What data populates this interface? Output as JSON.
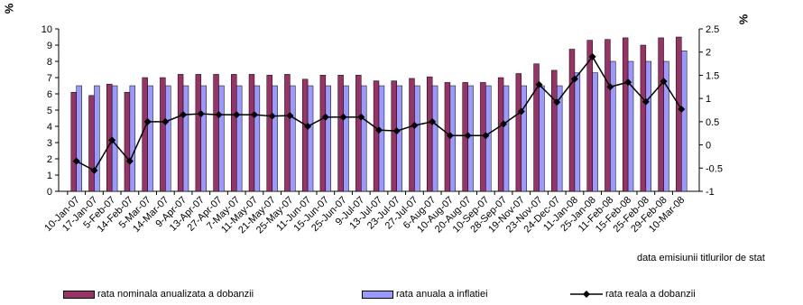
{
  "chart_data": {
    "type": "bar",
    "ylabel_left": "%",
    "ylabel_right": "%",
    "xlabel": "data emisiunii titlurilor de stat",
    "ylim_left": [
      0,
      10
    ],
    "ylim_right": [
      -1,
      2.5
    ],
    "yticks_left": [
      "0",
      "1",
      "2",
      "3",
      "4",
      "5",
      "6",
      "7",
      "8",
      "9",
      "10"
    ],
    "yticks_right": [
      "-1",
      "-0.5",
      "0",
      "0.5",
      "1",
      "1.5",
      "2",
      "2.5"
    ],
    "grid": false,
    "legend_position": "bottom",
    "categories": [
      "10-Jan-07",
      "17-Jan-07",
      "5-Feb-07",
      "14-Feb-07",
      "5-Mar-07",
      "14-Mar-07",
      "9-Apr-07",
      "13-Apr-07",
      "27-Apr-07",
      "7-May-07",
      "11-May-07",
      "21-May-07",
      "25-May-07",
      "11-Jun-07",
      "15-Jun-07",
      "25-Jun-07",
      "9-Jul-07",
      "13-Jul-07",
      "23-Jul-07",
      "27-Jul-07",
      "6-Aug-07",
      "10-Aug-07",
      "20-Aug-07",
      "10-Sep-07",
      "28-Sep-07",
      "19-Nov-07",
      "23-Nov-07",
      "24-Dec-07",
      "11-Jan-08",
      "25-Jan-08",
      "11-Feb-08",
      "15-Feb-08",
      "25-Feb-08",
      "29-Feb-08",
      "10-Mar-08"
    ],
    "series": [
      {
        "name": "rata nominala anualizata a dobanzii",
        "axis": "left",
        "kind": "bar",
        "color": "#993366",
        "values": [
          6.1,
          5.9,
          6.6,
          6.1,
          7.0,
          7.0,
          7.2,
          7.2,
          7.2,
          7.2,
          7.2,
          7.15,
          7.2,
          6.9,
          7.15,
          7.15,
          7.15,
          6.8,
          6.8,
          6.95,
          7.05,
          6.7,
          6.7,
          6.7,
          7.0,
          7.25,
          7.85,
          7.45,
          8.75,
          9.3,
          9.35,
          9.45,
          9.0,
          9.45,
          9.5
        ]
      },
      {
        "name": "rata anuala a inflatiei",
        "axis": "left",
        "kind": "bar",
        "color": "#9999ff",
        "values": [
          6.5,
          6.5,
          6.5,
          6.5,
          6.5,
          6.5,
          6.5,
          6.5,
          6.5,
          6.5,
          6.5,
          6.5,
          6.5,
          6.5,
          6.5,
          6.5,
          6.5,
          6.5,
          6.5,
          6.5,
          6.5,
          6.5,
          6.5,
          6.5,
          6.5,
          6.5,
          6.5,
          6.5,
          7.3,
          7.3,
          8.0,
          8.0,
          8.0,
          8.0,
          8.65
        ]
      },
      {
        "name": "rata reala a dobanzii",
        "axis": "right",
        "kind": "line",
        "color": "#000000",
        "values": [
          -0.35,
          -0.55,
          0.1,
          -0.35,
          0.5,
          0.5,
          0.65,
          0.67,
          0.65,
          0.65,
          0.65,
          0.62,
          0.63,
          0.4,
          0.6,
          0.6,
          0.6,
          0.32,
          0.3,
          0.42,
          0.5,
          0.2,
          0.2,
          0.2,
          0.45,
          0.72,
          1.3,
          0.92,
          1.42,
          1.9,
          1.25,
          1.35,
          0.93,
          1.37,
          0.77
        ]
      }
    ]
  }
}
